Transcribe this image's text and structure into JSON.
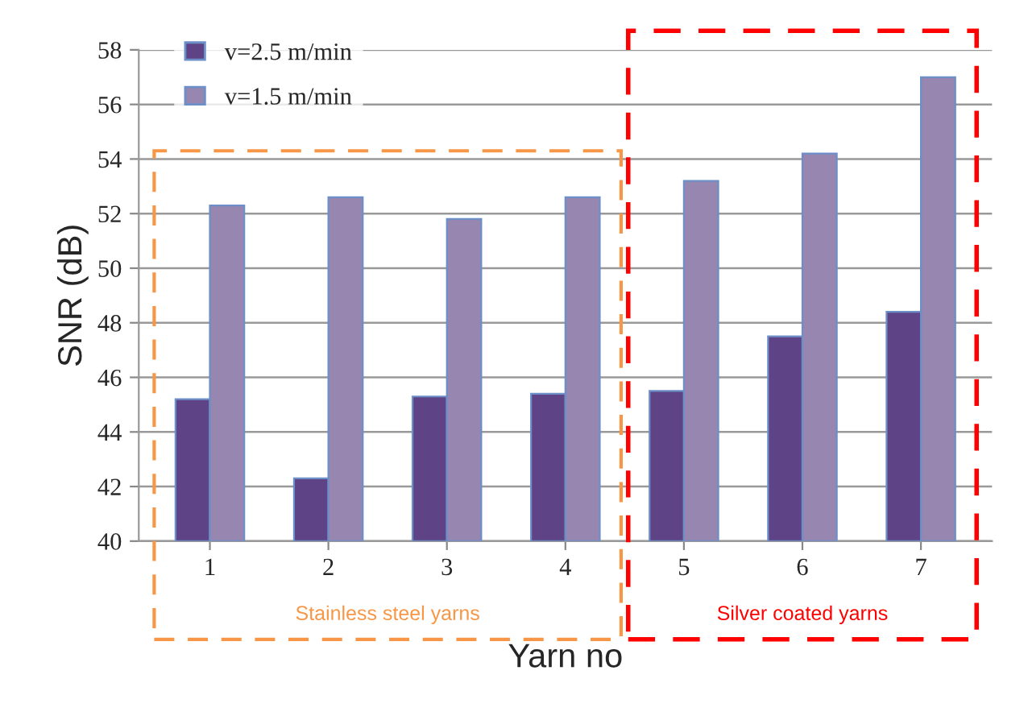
{
  "chart_data": {
    "type": "bar",
    "xlabel": "Yarn no",
    "ylabel": "SNR (dB)",
    "categories": [
      "1",
      "2",
      "3",
      "4",
      "5",
      "6",
      "7"
    ],
    "series": [
      {
        "name": "v=2.5 m/min",
        "color": "#5e4486",
        "values": [
          45.2,
          42.3,
          45.3,
          45.4,
          45.5,
          47.5,
          48.4
        ]
      },
      {
        "name": "v=1.5 m/min",
        "color": "#9686b0",
        "values": [
          52.3,
          52.6,
          51.8,
          52.6,
          53.2,
          54.2,
          57.0
        ]
      }
    ],
    "ylim": [
      40,
      58
    ],
    "yticks": [
      40,
      42,
      44,
      46,
      48,
      50,
      52,
      54,
      56,
      58
    ],
    "grid": "y",
    "legend": "top left",
    "annotations": [
      "Stainless steel yarns",
      "Silver coated yarns"
    ]
  }
}
